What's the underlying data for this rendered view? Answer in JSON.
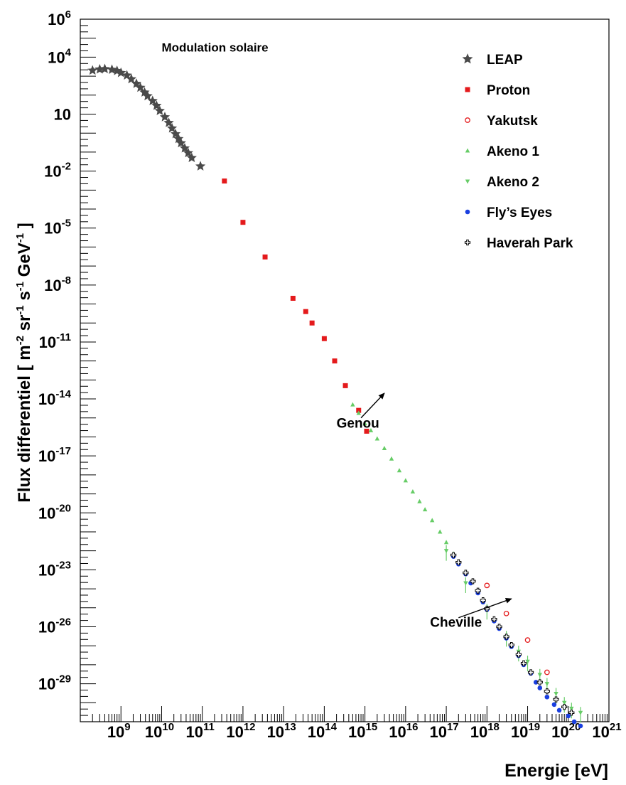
{
  "chart_data": {
    "type": "scatter",
    "title": "",
    "xlabel": "Energie [eV]",
    "ylabel": {
      "main": "Flux differentiel [ m",
      "sup1": "-2",
      "mid1": " sr",
      "sup2": "-1",
      "mid2": " s",
      "sup3": "-1",
      "mid3": " GeV",
      "sup4": "-1",
      "end": " ]"
    },
    "x_scale": "log",
    "y_scale": "log",
    "xlim": [
      100000000.0,
      1e+21
    ],
    "ylim": [
      1e-31,
      1000000.0
    ],
    "grid": false,
    "legend_position": "top-right",
    "x_ticks": [
      {
        "value": 1000000000.0,
        "base": "10",
        "exp": "9"
      },
      {
        "value": 10000000000.0,
        "base": "10",
        "exp": "10"
      },
      {
        "value": 100000000000.0,
        "base": "10",
        "exp": "11"
      },
      {
        "value": 1000000000000.0,
        "base": "10",
        "exp": "12"
      },
      {
        "value": 10000000000000.0,
        "base": "10",
        "exp": "13"
      },
      {
        "value": 100000000000000.0,
        "base": "10",
        "exp": "14"
      },
      {
        "value": 1000000000000000.0,
        "base": "10",
        "exp": "15"
      },
      {
        "value": 1e+16,
        "base": "10",
        "exp": "16"
      },
      {
        "value": 1e+17,
        "base": "10",
        "exp": "17"
      },
      {
        "value": 1e+18,
        "base": "10",
        "exp": "18"
      },
      {
        "value": 1e+19,
        "base": "10",
        "exp": "19"
      },
      {
        "value": 1e+20,
        "base": "10",
        "exp": "20"
      },
      {
        "value": 1e+21,
        "base": "10",
        "exp": "21"
      }
    ],
    "y_ticks": [
      {
        "value": 1000000.0,
        "base": "10",
        "exp": "6"
      },
      {
        "value": 10000.0,
        "base": "10",
        "exp": "4"
      },
      {
        "value": 10.0,
        "base": "10",
        "exp": ""
      },
      {
        "value": 0.01,
        "base": "10",
        "exp": "-2"
      },
      {
        "value": 1e-05,
        "base": "10",
        "exp": "-5"
      },
      {
        "value": 1e-08,
        "base": "10",
        "exp": "-8"
      },
      {
        "value": 1e-11,
        "base": "10",
        "exp": "-11"
      },
      {
        "value": 1e-14,
        "base": "10",
        "exp": "-14"
      },
      {
        "value": 1e-17,
        "base": "10",
        "exp": "-17"
      },
      {
        "value": 1e-20,
        "base": "10",
        "exp": "-20"
      },
      {
        "value": 1e-23,
        "base": "10",
        "exp": "-23"
      },
      {
        "value": 1e-26,
        "base": "10",
        "exp": "-26"
      },
      {
        "value": 1e-29,
        "base": "10",
        "exp": "-29"
      }
    ],
    "annotations": [
      {
        "id": "modulation",
        "text": "Modulation solaire",
        "x": 10000000000.0,
        "y": 20000.0
      },
      {
        "id": "genou",
        "text": "Genou",
        "x": 200000000000000.0,
        "y": 3e-16,
        "arrow_from": [
          800000000000000.0,
          1e-15
        ],
        "arrow_to": [
          3000000000000000.0,
          2e-14
        ]
      },
      {
        "id": "cheville",
        "text": "Cheville",
        "x": 4e+16,
        "y": 1e-26,
        "arrow_from": [
          2e+17,
          3e-26
        ],
        "arrow_to": [
          4e+18,
          3e-25
        ]
      }
    ],
    "series": [
      {
        "name": "LEAP",
        "marker": "star",
        "color": "#4a4a4a",
        "x": [
          200000000.0,
          300000000.0,
          400000000.0,
          600000000.0,
          800000000.0,
          1000000000.0,
          1400000000.0,
          1800000000.0,
          2400000000.0,
          3000000000.0,
          3800000000.0,
          4500000000.0,
          6000000000.0,
          7500000000.0,
          9000000000.0,
          12000000000.0,
          15000000000.0,
          18000000000.0,
          22000000000.0,
          26000000000.0,
          30000000000.0,
          37000000000.0,
          45000000000.0,
          55000000000.0,
          90000000000.0
        ],
        "y": [
          2000.0,
          2300.0,
          2400.0,
          2200.0,
          1900.0,
          1500.0,
          1100.0,
          700.0,
          400.0,
          250.0,
          140.0,
          90.0,
          50.0,
          28.0,
          15.0,
          7.0,
          3.5,
          1.8,
          0.9,
          0.5,
          0.3,
          0.16,
          0.09,
          0.05,
          0.018
        ]
      },
      {
        "name": "Proton",
        "marker": "square",
        "color": "#e41a1c",
        "x": [
          350000000000.0,
          1000000000000.0,
          3500000000000.0,
          17000000000000.0,
          35000000000000.0,
          50000000000000.0,
          100000000000000.0,
          180000000000000.0,
          330000000000000.0,
          700000000000000.0,
          1100000000000000.0
        ],
        "y": [
          0.003,
          2e-05,
          3e-07,
          2e-09,
          4e-10,
          1e-10,
          1.5e-11,
          1e-12,
          5e-14,
          2.5e-15,
          2e-16
        ]
      },
      {
        "name": "Yakutsk",
        "marker": "open-circle",
        "color": "#e41a1c",
        "x": [
          1e+18,
          3e+18,
          1e+19,
          3e+19
        ],
        "y": [
          1.5e-24,
          5e-26,
          2e-27,
          4e-29
        ]
      },
      {
        "name": "Akeno 1",
        "marker": "triangle-up",
        "color": "#66cc66",
        "x": [
          500000000000000.0,
          700000000000000.0,
          1000000000000000.0,
          1400000000000000.0,
          2000000000000000.0,
          3000000000000000.0,
          4500000000000000.0,
          7000000000000000.0,
          1e+16,
          1.5e+16,
          2.2e+16,
          3e+16,
          4.5e+16,
          7e+16,
          1e+17,
          1.5e+17
        ],
        "y": [
          5e-15,
          1.8e-15,
          5e-16,
          2.2e-16,
          8e-17,
          2.5e-17,
          7e-18,
          1.7e-18,
          5e-19,
          1.3e-19,
          4e-20,
          1.5e-20,
          4e-21,
          1e-21,
          2.8e-22,
          7e-23
        ]
      },
      {
        "name": "Akeno 2",
        "marker": "triangle-down",
        "color": "#66cc66",
        "x": [
          1e+17,
          3e+17,
          1e+18,
          3e+18,
          6e+18,
          1e+19,
          2e+19,
          3e+19,
          5e+19,
          8e+19,
          1.2e+20,
          2e+20
        ],
        "y": [
          1e-22,
          2e-24,
          8e-26,
          3e-27,
          5e-28,
          1.5e-28,
          3e-29,
          1e-29,
          3e-30,
          1e-30,
          5e-31,
          3e-31
        ],
        "err_lo": [
          1e-22,
          2e-24,
          8e-26,
          3e-27,
          5e-28,
          1.5e-28,
          3e-29,
          1e-29,
          3e-30,
          1e-30,
          5e-31,
          3e-31
        ],
        "err_hi": [
          1e-22,
          2e-24,
          8e-26,
          3e-27,
          5e-28,
          1.5e-28,
          3e-29,
          1e-29,
          3e-30,
          1e-30,
          5e-31,
          3e-31
        ]
      },
      {
        "name": "Fly’s Eyes",
        "marker": "circle",
        "color": "#1a3fe0",
        "x": [
          1.5e+17,
          2e+17,
          3e+17,
          4e+17,
          6e+17,
          8e+17,
          1e+18,
          1.5e+18,
          2e+18,
          3e+18,
          4e+18,
          6e+18,
          8e+18,
          1.2e+19,
          1.6e+19,
          2e+19,
          3e+19,
          4.5e+19,
          6e+19,
          1e+20,
          1.4e+20,
          2e+20
        ],
        "y": [
          5e-23,
          2e-23,
          6e-24,
          2e-24,
          6e-25,
          2e-25,
          8e-26,
          2e-26,
          8e-27,
          2.5e-27,
          9e-28,
          3e-28,
          1e-28,
          3.5e-29,
          1.2e-29,
          6e-30,
          2e-30,
          8e-31,
          4e-31,
          2e-31,
          1e-31,
          6e-32
        ]
      },
      {
        "name": "Haverah Park",
        "marker": "open-cross",
        "color": "#000000",
        "x": [
          1.5e+17,
          2e+17,
          3e+17,
          4.5e+17,
          6e+17,
          8e+17,
          1e+18,
          1.5e+18,
          2e+18,
          3e+18,
          4e+18,
          6e+18,
          8e+18,
          1.2e+19,
          2e+19,
          3e+19,
          5e+19,
          8e+19,
          1.2e+20
        ],
        "y": [
          6e-23,
          2.5e-23,
          7e-24,
          2.5e-24,
          8e-25,
          2.5e-25,
          9e-26,
          2.5e-26,
          1e-26,
          3e-27,
          1.1e-27,
          3.5e-28,
          1.2e-28,
          4e-29,
          1.2e-29,
          4e-30,
          1.5e-30,
          6e-31,
          3e-31
        ]
      }
    ]
  }
}
